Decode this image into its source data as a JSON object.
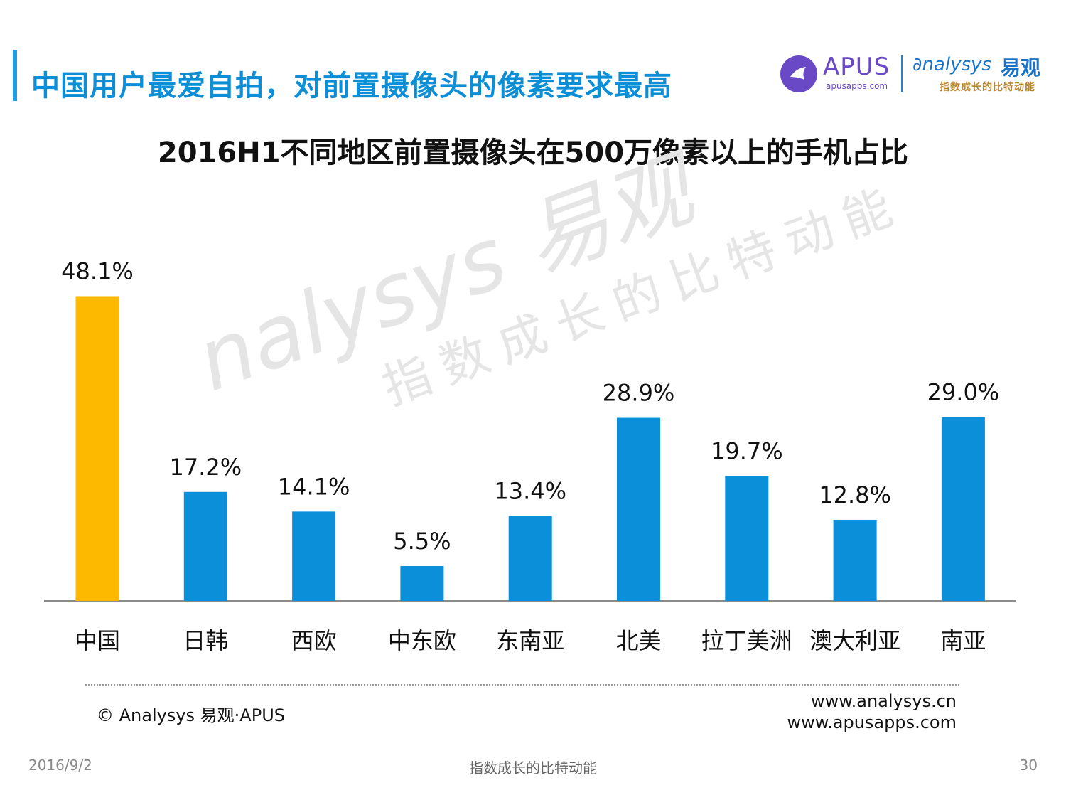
{
  "header": {
    "title": "中国用户最爱自拍，对前置摄像头的像素要求最高"
  },
  "logos": {
    "apus_name": "APUS",
    "apus_url": "apusapps.com",
    "analysys_name": "nalysys",
    "analysys_cn": "易观",
    "analysys_slogan": "指数成长的比特动能"
  },
  "watermark": {
    "main": "nalysys 易观",
    "sub": "指数成长的比特动能"
  },
  "chart_data": {
    "type": "bar",
    "title": "2016H1不同地区前置摄像头在500万像素以上的手机占比",
    "categories": [
      "中国",
      "日韩",
      "西欧",
      "中东欧",
      "东南亚",
      "北美",
      "拉丁美洲",
      "澳大利亚",
      "南亚"
    ],
    "values": [
      48.1,
      17.2,
      14.1,
      5.5,
      13.4,
      28.9,
      19.7,
      12.8,
      29.0
    ],
    "value_labels": [
      "48.1%",
      "17.2%",
      "14.1%",
      "5.5%",
      "13.4%",
      "28.9%",
      "19.7%",
      "12.8%",
      "29.0%"
    ],
    "colors": [
      "#fdb900",
      "#0a8fd8",
      "#0a8fd8",
      "#0a8fd8",
      "#0a8fd8",
      "#0a8fd8",
      "#0a8fd8",
      "#0a8fd8",
      "#0a8fd8"
    ],
    "ylim": [
      0,
      55
    ],
    "grid": false,
    "legend": "none"
  },
  "footer": {
    "copyright": "© Analysys 易观·APUS",
    "site1": "www.analysys.cn",
    "site2": "www.apusapps.com",
    "date": "2016/9/2",
    "slogan": "指数成长的比特动能",
    "page": "30"
  }
}
